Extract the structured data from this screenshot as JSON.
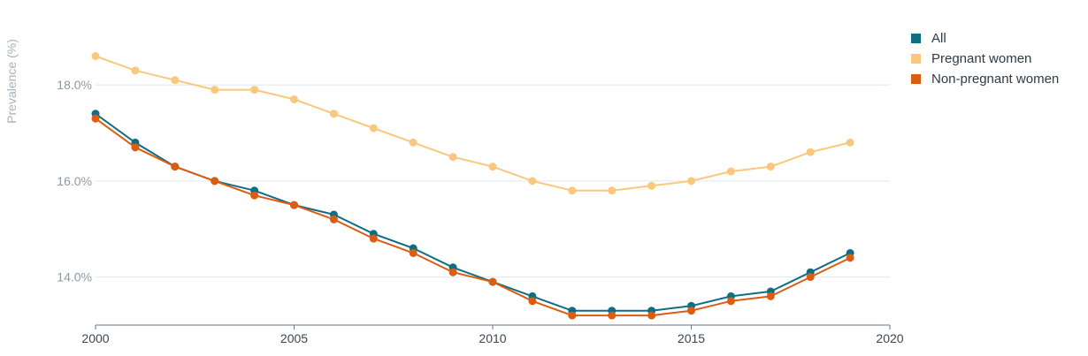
{
  "chart_data": {
    "type": "line",
    "ylabel": "Prevalence (%)",
    "xlim": [
      2000,
      2020
    ],
    "ylim": [
      13.0,
      19.4
    ],
    "x_ticks": [
      "2000",
      "2005",
      "2010",
      "2015",
      "2020"
    ],
    "x_tick_values": [
      2000,
      2005,
      2010,
      2015,
      2020
    ],
    "y_ticks": [
      "14.0%",
      "16.0%",
      "18.0%"
    ],
    "y_tick_values": [
      14,
      16,
      18
    ],
    "grid": "horizontal",
    "legend_position": "top-right",
    "x": [
      2000,
      2001,
      2002,
      2003,
      2004,
      2005,
      2006,
      2007,
      2008,
      2009,
      2010,
      2011,
      2012,
      2013,
      2014,
      2015,
      2016,
      2017,
      2018,
      2019
    ],
    "series": [
      {
        "name": "Pregnant women",
        "color": "#f9c87c",
        "values": [
          18.6,
          18.3,
          18.1,
          17.9,
          17.9,
          17.7,
          17.4,
          17.1,
          16.8,
          16.5,
          16.3,
          16.0,
          15.8,
          15.8,
          15.9,
          16.0,
          16.2,
          16.3,
          16.6,
          16.8
        ]
      },
      {
        "name": "All",
        "color": "#0f6e84",
        "values": [
          17.4,
          16.8,
          16.3,
          16.0,
          15.8,
          15.5,
          15.3,
          14.9,
          14.6,
          14.2,
          13.9,
          13.6,
          13.3,
          13.3,
          13.3,
          13.4,
          13.6,
          13.7,
          14.1,
          14.5
        ]
      },
      {
        "name": "Non-pregnant women",
        "color": "#dc5d11",
        "values": [
          17.3,
          16.7,
          16.3,
          16.0,
          15.7,
          15.5,
          15.2,
          14.8,
          14.5,
          14.1,
          13.9,
          13.5,
          13.2,
          13.2,
          13.2,
          13.3,
          13.5,
          13.6,
          14.0,
          14.4
        ]
      }
    ]
  },
  "legend": {
    "items": [
      {
        "label": "All",
        "color": "#0f6e84"
      },
      {
        "label": "Pregnant women",
        "color": "#f9c87c"
      },
      {
        "label": "Non-pregnant women",
        "color": "#dc5d11"
      }
    ]
  }
}
